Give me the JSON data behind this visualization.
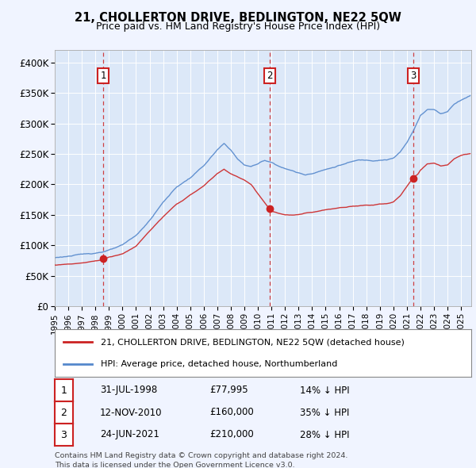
{
  "title": "21, CHOLLERTON DRIVE, BEDLINGTON, NE22 5QW",
  "subtitle": "Price paid vs. HM Land Registry's House Price Index (HPI)",
  "background_color": "#f0f4ff",
  "plot_bg_color": "#dce8f8",
  "grid_color": "#ffffff",
  "hpi_color": "#5588cc",
  "price_color": "#cc2222",
  "sale1_date": "31-JUL-1998",
  "sale1_price": 77995,
  "sale1_pct": "14%",
  "sale2_date": "12-NOV-2010",
  "sale2_price": 160000,
  "sale2_pct": "35%",
  "sale3_date": "24-JUN-2021",
  "sale3_price": 210000,
  "sale3_pct": "28%",
  "legend_label_price": "21, CHOLLERTON DRIVE, BEDLINGTON, NE22 5QW (detached house)",
  "legend_label_hpi": "HPI: Average price, detached house, Northumberland",
  "footer1": "Contains HM Land Registry data © Crown copyright and database right 2024.",
  "footer2": "This data is licensed under the Open Government Licence v3.0.",
  "ylim": [
    0,
    420000
  ],
  "yticks": [
    0,
    50000,
    100000,
    150000,
    200000,
    250000,
    300000,
    350000,
    400000
  ],
  "ytick_labels": [
    "£0",
    "£50K",
    "£100K",
    "£150K",
    "£200K",
    "£250K",
    "£300K",
    "£350K",
    "£400K"
  ],
  "xstart": 1995.0,
  "xend": 2025.75
}
